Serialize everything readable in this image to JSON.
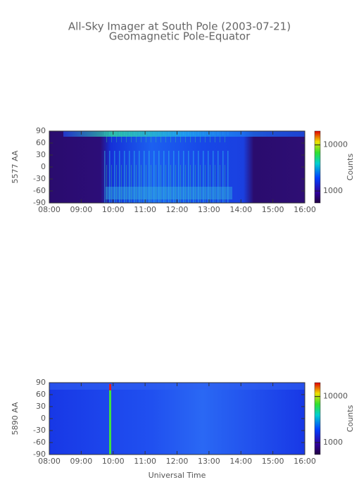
{
  "chart_data": [
    {
      "type": "heatmap",
      "title": "All-Sky Imager at South Pole (2003-07-21)",
      "subtitle": "Geomagnetic Pole-Equator",
      "ylabel": "5577 AA",
      "xlim": [
        8,
        16
      ],
      "xticks": [
        {
          "value": 8,
          "label": "08:00"
        },
        {
          "value": 9,
          "label": "09:00"
        },
        {
          "value": 10,
          "label": "10:00"
        },
        {
          "value": 11,
          "label": "11:00"
        },
        {
          "value": 12,
          "label": "12:00"
        },
        {
          "value": 13,
          "label": "13:00"
        },
        {
          "value": 14,
          "label": "14:00"
        },
        {
          "value": 15,
          "label": "15:00"
        },
        {
          "value": 16,
          "label": "16:00"
        }
      ],
      "ylim": [
        -90,
        90
      ],
      "yticks": [
        -90,
        -60,
        -30,
        0,
        30,
        60,
        90
      ],
      "colorbar_label": "Counts",
      "colorbar_log": true,
      "colorbar_lim": [
        550,
        20000
      ],
      "colorbar_ticks": [
        1000,
        10000
      ]
    },
    {
      "type": "heatmap",
      "ylabel": "5890 AA",
      "xlabel": "Universal Time",
      "xlim": [
        8,
        16
      ],
      "xticks": [
        {
          "value": 8,
          "label": "08:00"
        },
        {
          "value": 9,
          "label": "09:00"
        },
        {
          "value": 10,
          "label": "10:00"
        },
        {
          "value": 11,
          "label": "11:00"
        },
        {
          "value": 12,
          "label": "12:00"
        },
        {
          "value": 13,
          "label": "13:00"
        },
        {
          "value": 14,
          "label": "14:00"
        },
        {
          "value": 15,
          "label": "15:00"
        },
        {
          "value": 16,
          "label": "16:00"
        }
      ],
      "ylim": [
        -90,
        90
      ],
      "yticks": [
        -90,
        -60,
        -30,
        0,
        30,
        60,
        90
      ],
      "colorbar_label": "Counts",
      "colorbar_log": true,
      "colorbar_lim": [
        550,
        20000
      ],
      "colorbar_ticks": [
        1000,
        10000
      ]
    }
  ]
}
